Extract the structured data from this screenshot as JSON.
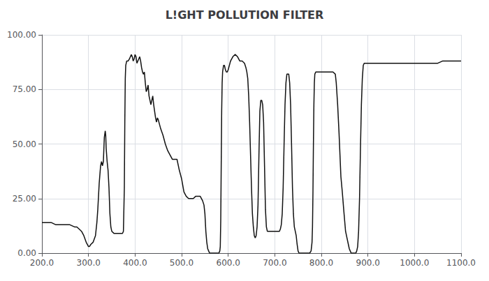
{
  "chart_data": {
    "type": "line",
    "title": "L!GHT POLLUTION FILTER",
    "color": "#111111",
    "grid": true,
    "xlim": [
      200.0,
      1100.0
    ],
    "ylim": [
      0.0,
      100.0
    ],
    "xticks": [
      {
        "value": 200,
        "label": "200.0"
      },
      {
        "value": 300,
        "label": "300.0"
      },
      {
        "value": 400,
        "label": "400.0"
      },
      {
        "value": 500,
        "label": "500.0"
      },
      {
        "value": 600,
        "label": "600.0"
      },
      {
        "value": 700,
        "label": "700.0"
      },
      {
        "value": 800,
        "label": "800.0"
      },
      {
        "value": 900,
        "label": "900.0"
      },
      {
        "value": 1000,
        "label": "1000.0"
      },
      {
        "value": 1100,
        "label": "1100.0"
      }
    ],
    "yticks": [
      {
        "value": 0,
        "label": "0.00"
      },
      {
        "value": 25,
        "label": "25.00"
      },
      {
        "value": 50,
        "label": "50.00"
      },
      {
        "value": 75,
        "label": "75.00"
      },
      {
        "value": 100,
        "label": "100.00"
      }
    ],
    "x": [
      200,
      210,
      220,
      230,
      240,
      250,
      260,
      270,
      275,
      280,
      285,
      290,
      295,
      300,
      302,
      305,
      310,
      315,
      318,
      320,
      323,
      326,
      328,
      330,
      332,
      334,
      336,
      337,
      338,
      340,
      342,
      344,
      346,
      348,
      350,
      355,
      360,
      365,
      370,
      373,
      375,
      377,
      378,
      379,
      380,
      382,
      385,
      388,
      390,
      392,
      394,
      396,
      398,
      400,
      402,
      404,
      406,
      408,
      410,
      412,
      414,
      416,
      418,
      420,
      422,
      424,
      426,
      428,
      430,
      432,
      434,
      436,
      438,
      440,
      442,
      444,
      446,
      448,
      450,
      455,
      460,
      465,
      470,
      475,
      480,
      485,
      490,
      495,
      500,
      505,
      510,
      515,
      520,
      525,
      530,
      535,
      540,
      545,
      548,
      550,
      552,
      554,
      556,
      558,
      560,
      562,
      565,
      570,
      575,
      578,
      580,
      582,
      583,
      584,
      585,
      586,
      587,
      588,
      590,
      592,
      594,
      596,
      598,
      600,
      605,
      610,
      615,
      620,
      625,
      630,
      635,
      638,
      640,
      642,
      644,
      646,
      648,
      650,
      652,
      654,
      656,
      658,
      660,
      662,
      664,
      666,
      668,
      670,
      672,
      674,
      676,
      678,
      680,
      682,
      684,
      686,
      688,
      690,
      695,
      700,
      705,
      710,
      712,
      714,
      716,
      718,
      720,
      722,
      724,
      726,
      728,
      730,
      732,
      734,
      736,
      738,
      740,
      742,
      744,
      746,
      748,
      750,
      752,
      755,
      760,
      765,
      770,
      775,
      778,
      780,
      781,
      782,
      783,
      784,
      785,
      786,
      788,
      790,
      795,
      800,
      805,
      810,
      815,
      820,
      825,
      830,
      832,
      835,
      838,
      840,
      842,
      845,
      848,
      850,
      852,
      855,
      858,
      860,
      862,
      864,
      866,
      868,
      870,
      872,
      874,
      876,
      878,
      880,
      882,
      884,
      886,
      888,
      890,
      892,
      895,
      900,
      910,
      920,
      930,
      940,
      950,
      960,
      970,
      980,
      990,
      1000,
      1010,
      1020,
      1030,
      1040,
      1050,
      1060,
      1070,
      1080,
      1090,
      1100
    ],
    "values": [
      14,
      14,
      14,
      13,
      13,
      13,
      13,
      12,
      12,
      11,
      10,
      8,
      5,
      3,
      3,
      4,
      5,
      8,
      14,
      20,
      32,
      40,
      42,
      40,
      42,
      53,
      56,
      54,
      48,
      42,
      38,
      30,
      18,
      12,
      10,
      9,
      9,
      9,
      9,
      9,
      10,
      30,
      60,
      80,
      86,
      88,
      88,
      89,
      90,
      91,
      90,
      88,
      89,
      91,
      90,
      87,
      88,
      89,
      90,
      88,
      85,
      83,
      82,
      83,
      78,
      74,
      75,
      77,
      72,
      70,
      68,
      70,
      72,
      68,
      65,
      62,
      60,
      62,
      61,
      57,
      54,
      50,
      47,
      45,
      43,
      43,
      43,
      38,
      34,
      28,
      26,
      25,
      25,
      25,
      26,
      26,
      26,
      24,
      22,
      18,
      10,
      5,
      2,
      1,
      0,
      0,
      0,
      0,
      0,
      0,
      0,
      1,
      3,
      15,
      40,
      65,
      78,
      83,
      86,
      86,
      84,
      83,
      83,
      84,
      88,
      90,
      91,
      90,
      88,
      88,
      87,
      85,
      83,
      80,
      72,
      60,
      45,
      30,
      18,
      12,
      8,
      7,
      8,
      12,
      22,
      45,
      65,
      70,
      70,
      68,
      60,
      40,
      20,
      12,
      10,
      10,
      10,
      10,
      10,
      10,
      10,
      10,
      11,
      13,
      18,
      30,
      50,
      68,
      78,
      82,
      82,
      82,
      78,
      68,
      50,
      30,
      18,
      12,
      10,
      8,
      4,
      1,
      0,
      0,
      0,
      0,
      0,
      0,
      1,
      5,
      12,
      28,
      50,
      68,
      78,
      82,
      83,
      83,
      83,
      83,
      83,
      83,
      83,
      83,
      83,
      82,
      78,
      68,
      55,
      45,
      35,
      28,
      20,
      15,
      10,
      7,
      4,
      2,
      1,
      0,
      0,
      0,
      0,
      0,
      0,
      1,
      3,
      10,
      25,
      48,
      68,
      80,
      86,
      87,
      87,
      87,
      87,
      87,
      87,
      87,
      87,
      87,
      87,
      87,
      87,
      87,
      87,
      87,
      87,
      87,
      87,
      88,
      88,
      88,
      88,
      88
    ]
  }
}
